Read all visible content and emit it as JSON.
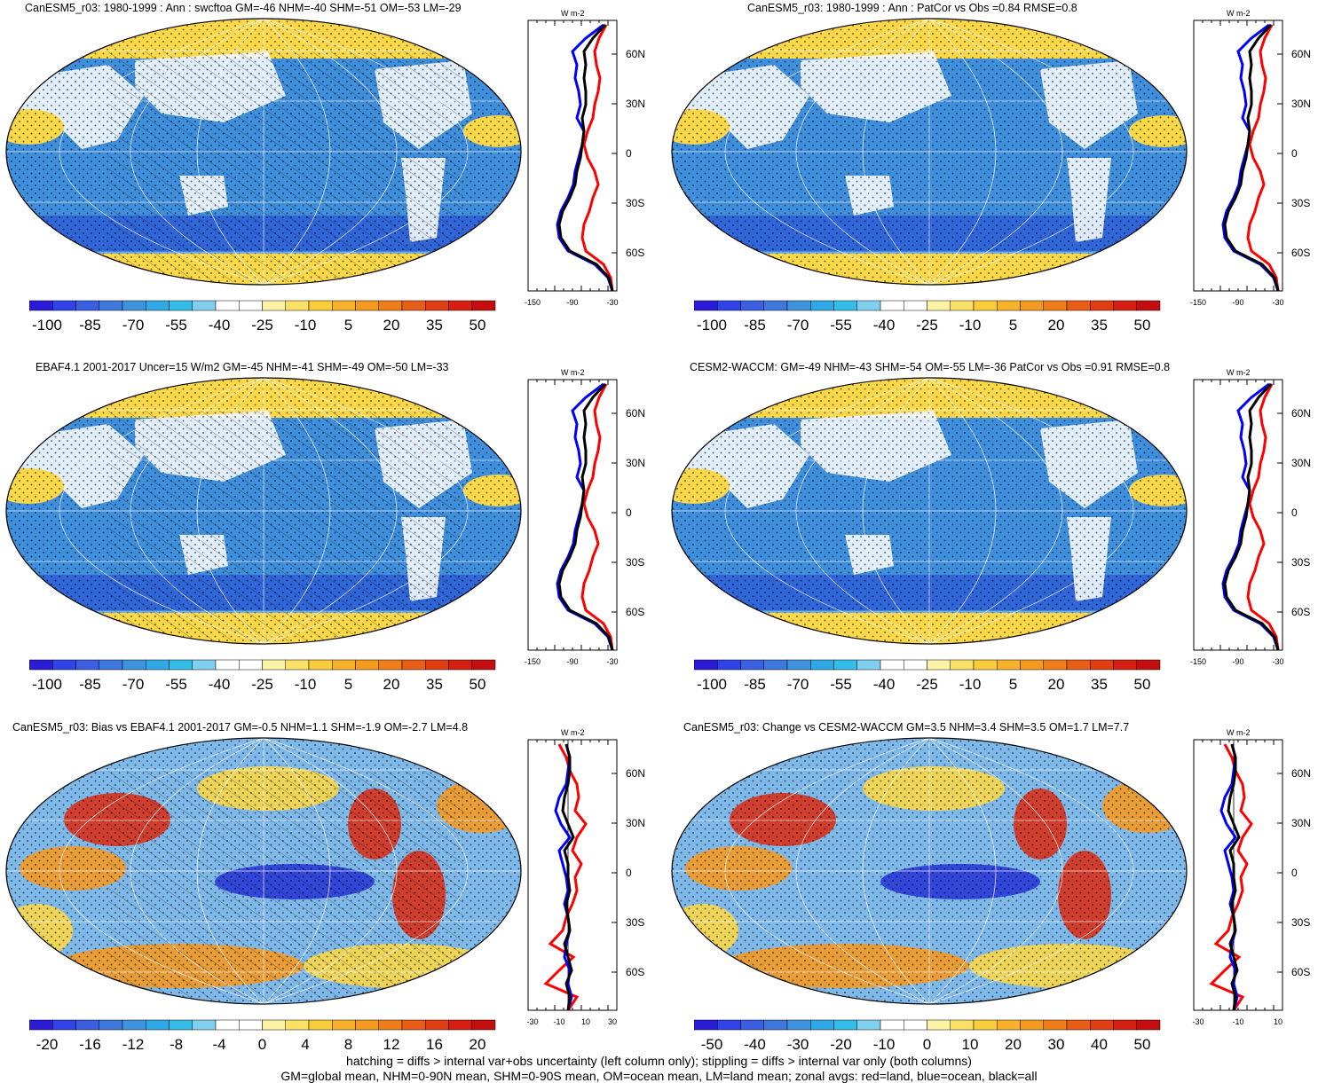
{
  "panels": [
    {
      "title": "CanESM5_r03: 1980-1999 : Ann : swcftoa GM=-46 NHM=-40 SHM=-51 OM=-53 LM=-29",
      "colorbar_labels": [
        "-100",
        "-85",
        "-70",
        "-55",
        "-40",
        "-25",
        "-10",
        "5",
        "20",
        "35",
        "50"
      ],
      "zonal_unit": "W m-2",
      "zonal_ticks": [
        "-150",
        "-90",
        "-30"
      ],
      "lat_labels": [
        "60N",
        "30N",
        "0",
        "30S",
        "60S"
      ],
      "hatching": true,
      "map_fill": "base"
    },
    {
      "title": "CanESM5_r03: 1980-1999 : Ann : PatCor vs Obs =0.84 RMSE=0.8",
      "colorbar_labels": [
        "-100",
        "-85",
        "-70",
        "-55",
        "-40",
        "-25",
        "-10",
        "5",
        "20",
        "35",
        "50"
      ],
      "zonal_unit": "W m-2",
      "zonal_ticks": [
        "-150",
        "-90",
        "-30"
      ],
      "lat_labels": [
        "60N",
        "30N",
        "0",
        "30S",
        "60S"
      ],
      "hatching": false,
      "map_fill": "base"
    },
    {
      "title": "EBAF4.1 2001-2017 Uncer=15 W/m2 GM=-45 NHM=-41 SHM=-49 OM=-50 LM=-33",
      "colorbar_labels": [
        "-100",
        "-85",
        "-70",
        "-55",
        "-40",
        "-25",
        "-10",
        "5",
        "20",
        "35",
        "50"
      ],
      "zonal_unit": "W m-2",
      "zonal_ticks": [
        "-150",
        "-90",
        "-30"
      ],
      "lat_labels": [
        "60N",
        "30N",
        "0",
        "30S",
        "60S"
      ],
      "hatching": true,
      "map_fill": "base"
    },
    {
      "title": "CESM2-WACCM: GM=-49 NHM=-43 SHM=-54 OM=-55 LM=-36 PatCor vs Obs =0.91 RMSE=0.8",
      "colorbar_labels": [
        "-100",
        "-85",
        "-70",
        "-55",
        "-40",
        "-25",
        "-10",
        "5",
        "20",
        "35",
        "50"
      ],
      "zonal_unit": "W m-2",
      "zonal_ticks": [
        "-150",
        "-90",
        "-30"
      ],
      "lat_labels": [
        "60N",
        "30N",
        "0",
        "30S",
        "60S"
      ],
      "hatching": false,
      "map_fill": "base"
    },
    {
      "title": "CanESM5_r03: Bias vs EBAF4.1 2001-2017 GM=-0.5 NHM=1.1 SHM=-1.9 OM=-2.7 LM=4.8",
      "colorbar_labels": [
        "-20",
        "-16",
        "-12",
        "-8",
        "-4",
        "0",
        "4",
        "8",
        "12",
        "16",
        "20"
      ],
      "zonal_unit": "W m-2",
      "zonal_ticks": [
        "-30",
        "-10",
        "10",
        "30"
      ],
      "lat_labels": [
        "60N",
        "30N",
        "0",
        "30S",
        "60S"
      ],
      "hatching": true,
      "map_fill": "diff"
    },
    {
      "title": "CanESM5_r03: Change vs CESM2-WACCM GM=3.5 NHM=3.4 SHM=3.5 OM=1.7 LM=7.7",
      "colorbar_labels": [
        "-50",
        "-40",
        "-30",
        "-20",
        "-10",
        "0",
        "10",
        "20",
        "30",
        "40",
        "50"
      ],
      "zonal_unit": "W m-2",
      "zonal_ticks": [
        "-30",
        "-10",
        "10"
      ],
      "lat_labels": [
        "60N",
        "30N",
        "0",
        "30S",
        "60S"
      ],
      "hatching": false,
      "map_fill": "diff"
    }
  ],
  "colorbar_colors": [
    "#2a1bd6",
    "#2f43e8",
    "#3a5fe0",
    "#3f78dc",
    "#3f92de",
    "#2fa9e6",
    "#34bde8",
    "#80cfee",
    "#ffffff",
    "#ffffff",
    "#fdf3a6",
    "#fbe067",
    "#f9cc3a",
    "#f7b22a",
    "#f39a1f",
    "#ef7e1a",
    "#e85e16",
    "#e13e14",
    "#d61f12",
    "#c30d0e"
  ],
  "map_colors": {
    "ocean_blue": "#3f8fdc",
    "deep_blue": "#2f5fd8",
    "land_white": "#ffffff",
    "yellow": "#fbd84a",
    "orange": "#f49a25",
    "red": "#d8311a"
  },
  "zonal_line_colors": {
    "land": "red",
    "ocean": "blue",
    "all": "black"
  },
  "footer_lines": [
    "hatching = diffs > internal var+obs uncertainty (left column only); stippling = diffs > internal var only (both columns)",
    "GM=global mean, NHM=0-90N mean, SHM=0-90S mean, OM=ocean mean, LM=land mean; zonal avgs: red=land, blue=ocean, black=all"
  ]
}
